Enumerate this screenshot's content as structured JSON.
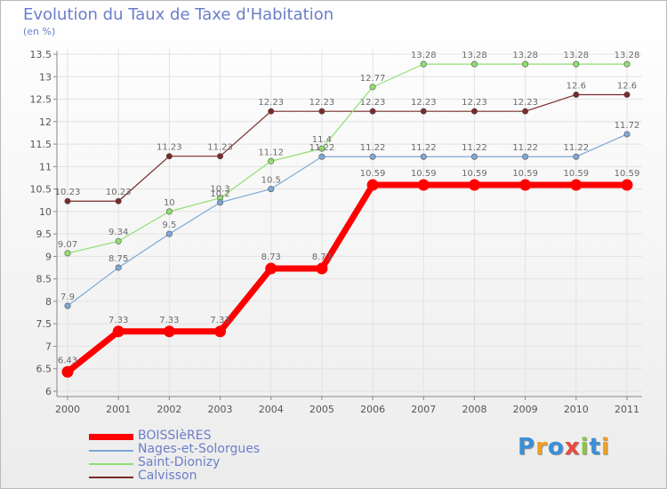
{
  "title": "Evolution du Taux de Taxe d'Habitation",
  "unit_label": "(en %)",
  "brand": {
    "text": "Proxiti",
    "letters": [
      {
        "ch": "P",
        "color": "#3a8fd6"
      },
      {
        "ch": "r",
        "color": "#f0a020"
      },
      {
        "ch": "o",
        "color": "#3a8fd6"
      },
      {
        "ch": "x",
        "color": "#e84a3a"
      },
      {
        "ch": "i",
        "color": "#8cc63f"
      },
      {
        "ch": "t",
        "color": "#3a8fd6"
      },
      {
        "ch": "i",
        "color": "#f0a020"
      }
    ]
  },
  "chart_data": {
    "type": "line",
    "title": "Evolution du Taux de Taxe d'Habitation",
    "ylabel": "(en %)",
    "xlabel": "",
    "x": [
      "2000",
      "2001",
      "2002",
      "2003",
      "2004",
      "2005",
      "2006",
      "2007",
      "2008",
      "2009",
      "2010",
      "2011"
    ],
    "ylim": [
      6,
      13.5
    ],
    "yticks": [
      "6",
      "6.5",
      "7",
      "7.5",
      "8",
      "8.5",
      "9",
      "9.5",
      "10",
      "10.5",
      "11",
      "11.5",
      "12",
      "12.5",
      "13",
      "13.5"
    ],
    "grid": true,
    "legend_position": "bottom-left",
    "series": [
      {
        "name": "BOISSIèRES",
        "color": "#ff0000",
        "values": [
          6.43,
          7.33,
          7.33,
          7.33,
          8.73,
          8.73,
          10.59,
          10.59,
          10.59,
          10.59,
          10.59,
          10.59
        ],
        "labels": [
          "6.43",
          "7.33",
          "7.33",
          "7.33",
          "8.73",
          "8.73",
          "10.59",
          "10.59",
          "10.59",
          "10.59",
          "10.59",
          "10.59"
        ]
      },
      {
        "name": "Nages-et-Solorgues",
        "color": "#7fa8d6",
        "values": [
          7.9,
          8.75,
          9.5,
          10.2,
          10.5,
          11.22,
          11.22,
          11.22,
          11.22,
          11.22,
          11.22,
          11.72
        ],
        "labels": [
          "7.9",
          "8.75",
          "9.5",
          "10.2",
          "10.5",
          "11.22",
          "11.22",
          "11.22",
          "11.22",
          "11.22",
          "11.22",
          "11.72"
        ]
      },
      {
        "name": "Saint-Dionizy",
        "color": "#90e070",
        "values": [
          9.07,
          9.34,
          10,
          10.3,
          11.12,
          11.4,
          12.77,
          13.28,
          13.28,
          13.28,
          13.28,
          13.28
        ],
        "labels": [
          "9.07",
          "9.34",
          "10",
          "10.3",
          "11.12",
          "11.4",
          "12.77",
          "13.28",
          "13.28",
          "13.28",
          "13.28",
          "13.28"
        ]
      },
      {
        "name": "Calvisson",
        "color": "#7a2a2a",
        "values": [
          10.23,
          10.23,
          11.23,
          11.23,
          12.23,
          12.23,
          12.23,
          12.23,
          12.23,
          12.23,
          12.6,
          12.6
        ],
        "labels": [
          "10.23",
          "10.23",
          "11.23",
          "11.23",
          "12.23",
          "12.23",
          "12.23",
          "12.23",
          "12.23",
          "12.23",
          "12.6",
          "12.6"
        ]
      }
    ]
  }
}
